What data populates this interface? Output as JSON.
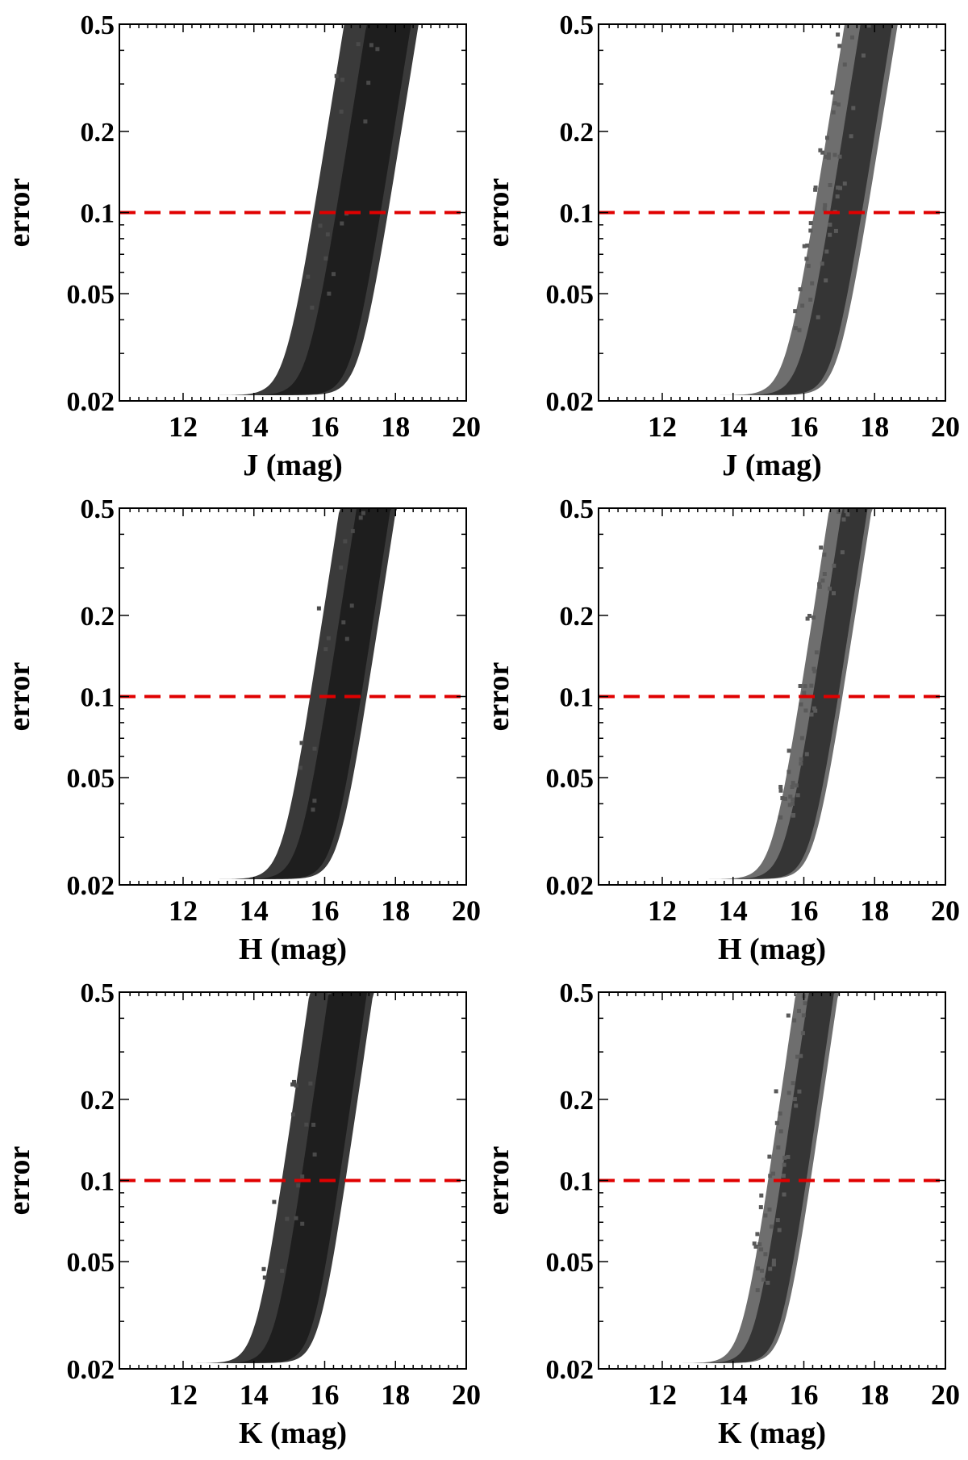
{
  "figure": {
    "panels_layout": "3 rows x 2 columns",
    "threshold_color": "#e00000",
    "cloud_color": "#1a1a1a",
    "frame_color": "#000000"
  },
  "chart_data": [
    {
      "type": "scatter",
      "panel": "row1-left",
      "xlabel": "J (mag)",
      "ylabel": "error",
      "y_scale": "log",
      "xlim": [
        10.2,
        20
      ],
      "ylim": [
        0.02,
        0.5
      ],
      "xticks": [
        12,
        14,
        16,
        18,
        20
      ],
      "xtick_labels": [
        "12",
        "14",
        "16",
        "18",
        "20"
      ],
      "yticks": [
        0.02,
        0.05,
        0.1,
        0.2,
        0.5
      ],
      "ytick_labels": [
        "0.02",
        "0.05",
        "0.1",
        "0.2",
        "0.5"
      ],
      "threshold": {
        "y": 0.1,
        "style": "dashed",
        "color": "#e00000"
      },
      "density_band": {
        "floor": 0.021,
        "x_min": 10.2,
        "x_max": 20,
        "m_bright": 15.7,
        "m_faint": 17.8,
        "slope": 0.82,
        "tint": "dark"
      }
    },
    {
      "type": "scatter",
      "panel": "row1-right",
      "xlabel": "J (mag)",
      "ylabel": "error",
      "y_scale": "log",
      "xlim": [
        10.2,
        20
      ],
      "ylim": [
        0.02,
        0.5
      ],
      "xticks": [
        12,
        14,
        16,
        18,
        20
      ],
      "xtick_labels": [
        "12",
        "14",
        "16",
        "18",
        "20"
      ],
      "yticks": [
        0.02,
        0.05,
        0.1,
        0.2,
        0.5
      ],
      "ytick_labels": [
        "0.02",
        "0.05",
        "0.1",
        "0.2",
        "0.5"
      ],
      "threshold": {
        "y": 0.1,
        "style": "dashed",
        "color": "#e00000"
      },
      "density_band": {
        "floor": 0.021,
        "x_min": 10.2,
        "x_max": 19.8,
        "m_bright": 16.3,
        "m_faint": 17.8,
        "slope": 0.82,
        "tint": "grey"
      }
    },
    {
      "type": "scatter",
      "panel": "row2-left",
      "xlabel": "H (mag)",
      "ylabel": "error",
      "y_scale": "log",
      "xlim": [
        10.2,
        20
      ],
      "ylim": [
        0.02,
        0.5
      ],
      "xticks": [
        12,
        14,
        16,
        18,
        20
      ],
      "xtick_labels": [
        "12",
        "14",
        "16",
        "18",
        "20"
      ],
      "yticks": [
        0.02,
        0.05,
        0.1,
        0.2,
        0.5
      ],
      "ytick_labels": [
        "0.02",
        "0.05",
        "0.1",
        "0.2",
        "0.5"
      ],
      "threshold": {
        "y": 0.1,
        "style": "dashed",
        "color": "#e00000"
      },
      "density_band": {
        "floor": 0.021,
        "x_min": 10.2,
        "x_max": 20,
        "m_bright": 15.6,
        "m_faint": 17.2,
        "slope": 0.85,
        "tint": "dark"
      }
    },
    {
      "type": "scatter",
      "panel": "row2-right",
      "xlabel": "H (mag)",
      "ylabel": "error",
      "y_scale": "log",
      "xlim": [
        10.2,
        20
      ],
      "ylim": [
        0.02,
        0.5
      ],
      "xticks": [
        12,
        14,
        16,
        18,
        20
      ],
      "xtick_labels": [
        "12",
        "14",
        "16",
        "18",
        "20"
      ],
      "yticks": [
        0.02,
        0.05,
        0.1,
        0.2,
        0.5
      ],
      "ytick_labels": [
        "0.02",
        "0.05",
        "0.1",
        "0.2",
        "0.5"
      ],
      "threshold": {
        "y": 0.1,
        "style": "dashed",
        "color": "#e00000"
      },
      "density_band": {
        "floor": 0.021,
        "x_min": 10.2,
        "x_max": 18.9,
        "m_bright": 15.9,
        "m_faint": 17.1,
        "slope": 0.85,
        "tint": "grey"
      }
    },
    {
      "type": "scatter",
      "panel": "row3-left",
      "xlabel": "K (mag)",
      "ylabel": "error",
      "y_scale": "log",
      "xlim": [
        10.2,
        20
      ],
      "ylim": [
        0.02,
        0.5
      ],
      "xticks": [
        12,
        14,
        16,
        18,
        20
      ],
      "xtick_labels": [
        "12",
        "14",
        "16",
        "18",
        "20"
      ],
      "yticks": [
        0.02,
        0.05,
        0.1,
        0.2,
        0.5
      ],
      "ytick_labels": [
        "0.02",
        "0.05",
        "0.1",
        "0.2",
        "0.5"
      ],
      "threshold": {
        "y": 0.1,
        "style": "dashed",
        "color": "#e00000"
      },
      "density_band": {
        "floor": 0.021,
        "x_min": 10.2,
        "x_max": 19.3,
        "m_bright": 14.8,
        "m_faint": 16.6,
        "slope": 0.9,
        "tint": "dark"
      }
    },
    {
      "type": "scatter",
      "panel": "row3-right",
      "xlabel": "K (mag)",
      "ylabel": "error",
      "y_scale": "log",
      "xlim": [
        10.2,
        20
      ],
      "ylim": [
        0.02,
        0.5
      ],
      "xticks": [
        12,
        14,
        16,
        18,
        20
      ],
      "xtick_labels": [
        "12",
        "14",
        "16",
        "18",
        "20"
      ],
      "yticks": [
        0.02,
        0.05,
        0.1,
        0.2,
        0.5
      ],
      "ytick_labels": [
        "0.02",
        "0.05",
        "0.1",
        "0.2",
        "0.5"
      ],
      "threshold": {
        "y": 0.1,
        "style": "dashed",
        "color": "#e00000"
      },
      "density_band": {
        "floor": 0.021,
        "x_min": 10.2,
        "x_max": 18.0,
        "m_bright": 15.0,
        "m_faint": 16.2,
        "slope": 0.9,
        "tint": "grey"
      }
    }
  ]
}
